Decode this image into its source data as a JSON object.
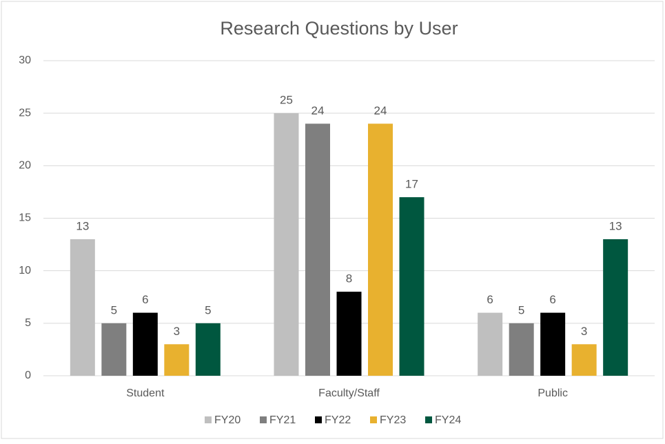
{
  "chart_data": {
    "type": "bar",
    "title": "Research Questions by User",
    "categories": [
      "Student",
      "Faculty/Staff",
      "Public"
    ],
    "series": [
      {
        "name": "FY20",
        "color": "#bfbfbf",
        "values": [
          13,
          25,
          6
        ]
      },
      {
        "name": "FY21",
        "color": "#7f7f7f",
        "values": [
          5,
          24,
          5
        ]
      },
      {
        "name": "FY22",
        "color": "#000000",
        "values": [
          6,
          8,
          6
        ]
      },
      {
        "name": "FY23",
        "color": "#e8b12f",
        "values": [
          3,
          24,
          3
        ]
      },
      {
        "name": "FY24",
        "color": "#00573f",
        "values": [
          5,
          17,
          13
        ]
      }
    ],
    "ylim": [
      0,
      30
    ],
    "yticks": [
      0,
      5,
      10,
      15,
      20,
      25,
      30
    ],
    "grid": true,
    "legend": "bottom"
  }
}
